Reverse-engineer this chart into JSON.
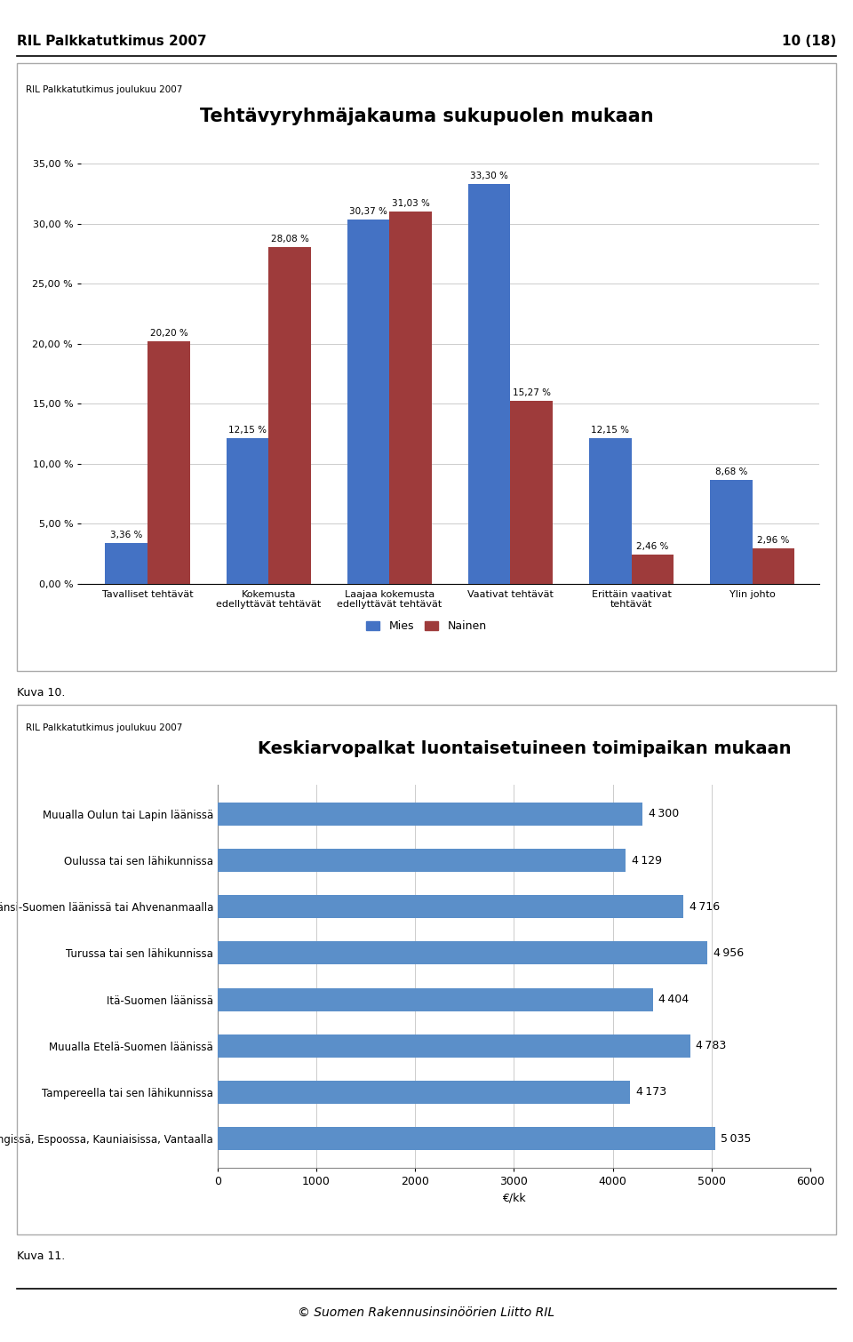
{
  "page_header_left": "RIL Palkkatutkimus 2007",
  "page_header_right": "10 (18)",
  "footer_text": "© Suomen Rakennusinsinöörien Liitto RIL",
  "chart1": {
    "subtitle": "RIL Palkkatutkimus joulukuu 2007",
    "title": "Tehtävyryhmäjakauma sukupuolen mukaan",
    "categories": [
      "Tavalliset tehtävät",
      "Kokemusta\nedellyttävät tehtävät",
      "Laajaa kokemusta\nedellyttävät tehtävät",
      "Vaativat tehtävät",
      "Erittäin vaativat\ntehtävät",
      "Ylin johto"
    ],
    "mies": [
      3.36,
      12.15,
      30.37,
      33.3,
      12.15,
      8.68
    ],
    "nainen": [
      20.2,
      28.08,
      31.03,
      15.27,
      2.46,
      2.96
    ],
    "mies_color": "#4472C4",
    "nainen_color": "#9E3B3B",
    "ylim": [
      0,
      35
    ],
    "ytick_labels": [
      "0,00 %",
      "5,00 %",
      "10,00 %",
      "15,00 %",
      "20,00 %",
      "25,00 %",
      "30,00 %",
      "35,00 %"
    ],
    "legend_mies": "Mies",
    "legend_nainen": "Nainen",
    "kuva_label": "Kuva 10."
  },
  "chart2": {
    "subtitle": "RIL Palkkatutkimus joulukuu 2007",
    "title": "Keskiarvopalkat luontaisetuineen toimipaikan mukaan",
    "categories": [
      "Muualla Oulun tai Lapin läänissä",
      "Oulussa tai sen lähikunnissa",
      "Muualla Länsi-Suomen läänissä tai Ahvenanmaalla",
      "Turussa tai sen lähikunnissa",
      "Itä-Suomen läänissä",
      "Muualla Etelä-Suomen läänissä",
      "Tampereella tai sen lähikunnissa",
      "Helsingissä, Espoossa, Kauniaisissa, Vantaalla"
    ],
    "values": [
      4300,
      4129,
      4716,
      4956,
      4404,
      4783,
      4173,
      5035
    ],
    "bar_color": "#5B8FC9",
    "xlabel": "€/kk",
    "kuva_label": "Kuva 11."
  }
}
